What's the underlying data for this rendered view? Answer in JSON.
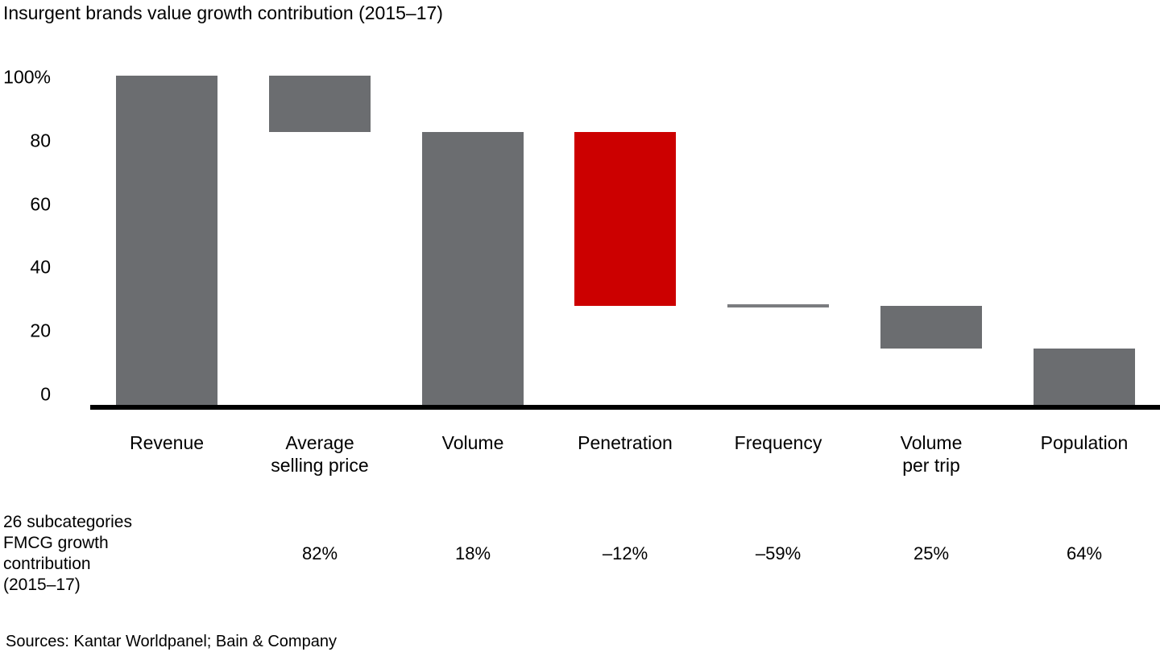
{
  "title": "Insurgent brands value growth contribution (2015–17)",
  "sources": "Sources: Kantar Worldpanel; Bain & Company",
  "colors": {
    "bar_gray": "#6b6d70",
    "bar_red": "#cc0000",
    "frequency_line": "#7b7c7f",
    "axis_black": "#000000",
    "background": "#ffffff"
  },
  "chart_data": {
    "type": "waterfall",
    "title": "Insurgent brands value growth contribution (2015–17)",
    "ylim": [
      0,
      100
    ],
    "grid": false,
    "legend": "none",
    "yticks": [
      {
        "label": "100%",
        "value": 100
      },
      {
        "label": "80",
        "value": 80
      },
      {
        "label": "60",
        "value": 60
      },
      {
        "label": "40",
        "value": 40
      },
      {
        "label": "20",
        "value": 20
      },
      {
        "label": "0",
        "value": 0
      }
    ],
    "categories": [
      "Revenue",
      "Average selling price",
      "Volume",
      "Penetration",
      "Frequency",
      "Volume per trip",
      "Population"
    ],
    "bars": [
      {
        "label": "Revenue",
        "label_lines": [
          "Revenue"
        ],
        "start": 0,
        "end": 100,
        "value": 100,
        "color": "bar_gray",
        "style": "bar"
      },
      {
        "label": "Average selling price",
        "label_lines": [
          "Average",
          "selling price"
        ],
        "start": 83,
        "end": 100,
        "value": 17,
        "color": "bar_gray",
        "style": "bar"
      },
      {
        "label": "Volume",
        "label_lines": [
          "Volume"
        ],
        "start": 0,
        "end": 83,
        "value": 83,
        "color": "bar_gray",
        "style": "bar"
      },
      {
        "label": "Penetration",
        "label_lines": [
          "Penetration"
        ],
        "start": 30,
        "end": 83,
        "value": 53,
        "color": "bar_red",
        "style": "bar"
      },
      {
        "label": "Frequency",
        "label_lines": [
          "Frequency"
        ],
        "start": 30,
        "end": 30,
        "value": 0,
        "color": "frequency_line",
        "style": "thin-line"
      },
      {
        "label": "Volume per trip",
        "label_lines": [
          "Volume",
          "per trip"
        ],
        "start": 17,
        "end": 30,
        "value": 13,
        "color": "bar_gray",
        "style": "bar"
      },
      {
        "label": "Population",
        "label_lines": [
          "Population"
        ],
        "start": 0,
        "end": 17,
        "value": 17,
        "color": "bar_gray",
        "style": "bar"
      }
    ],
    "comparison_row": {
      "header_lines": [
        "26 subcategories",
        "FMCG growth",
        "contribution",
        "(2015–17)"
      ],
      "values": [
        "",
        "82%",
        "18%",
        "–12%",
        "–59%",
        "25%",
        "64%"
      ]
    }
  }
}
